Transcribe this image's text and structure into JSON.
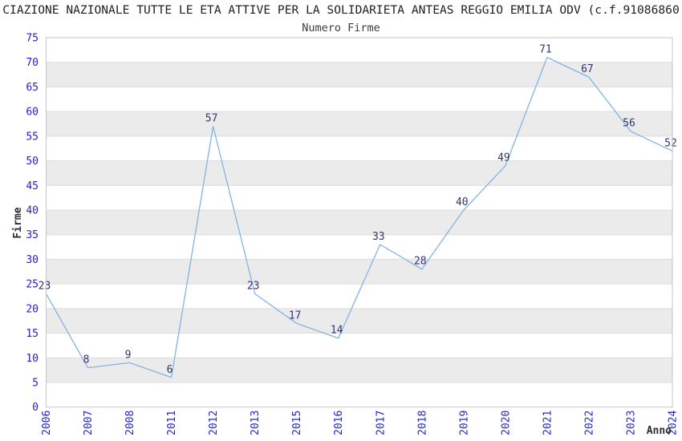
{
  "header": {
    "title": "CIAZIONE NAZIONALE TUTTE LE ETA ATTIVE PER LA SOLIDARIETA ANTEAS REGGIO EMILIA ODV (c.f.91086860",
    "subtitle": "Numero Firme"
  },
  "chart_data": {
    "type": "line",
    "title": "CIAZIONE NAZIONALE TUTTE LE ETA ATTIVE PER LA SOLIDARIETA ANTEAS REGGIO EMILIA ODV (c.f.91086860",
    "subtitle": "Numero Firme",
    "categories": [
      "2006",
      "2007",
      "2008",
      "2011",
      "2012",
      "2013",
      "2015",
      "2016",
      "2017",
      "2018",
      "2019",
      "2020",
      "2021",
      "2022",
      "2023",
      "2024"
    ],
    "values": [
      23,
      8,
      9,
      6,
      57,
      23,
      17,
      14,
      33,
      28,
      40,
      49,
      71,
      67,
      56,
      52
    ],
    "xlabel": "Anno",
    "ylabel": "Firme",
    "ylim": [
      0,
      75
    ],
    "ytick_step": 5,
    "grid": true,
    "legend": false,
    "band_pattern": "alternating horizontal stripes, gray on 5-10, 15-20, 25-30, 35-40, 45-50, 55-60, 65-70",
    "line_marker": "none",
    "data_labels_shown": true
  },
  "colors": {
    "line": "#82b4e4",
    "data_label": "#333377",
    "tick_label": "#2222dd",
    "band": "#ebebeb",
    "grid": "#dcdcdc",
    "spine": "#c6c6c6",
    "title": "#1f1f1f",
    "subtitle": "#3d3d3d",
    "axis_label": "#2e2e2e",
    "background": "#ffffff"
  }
}
